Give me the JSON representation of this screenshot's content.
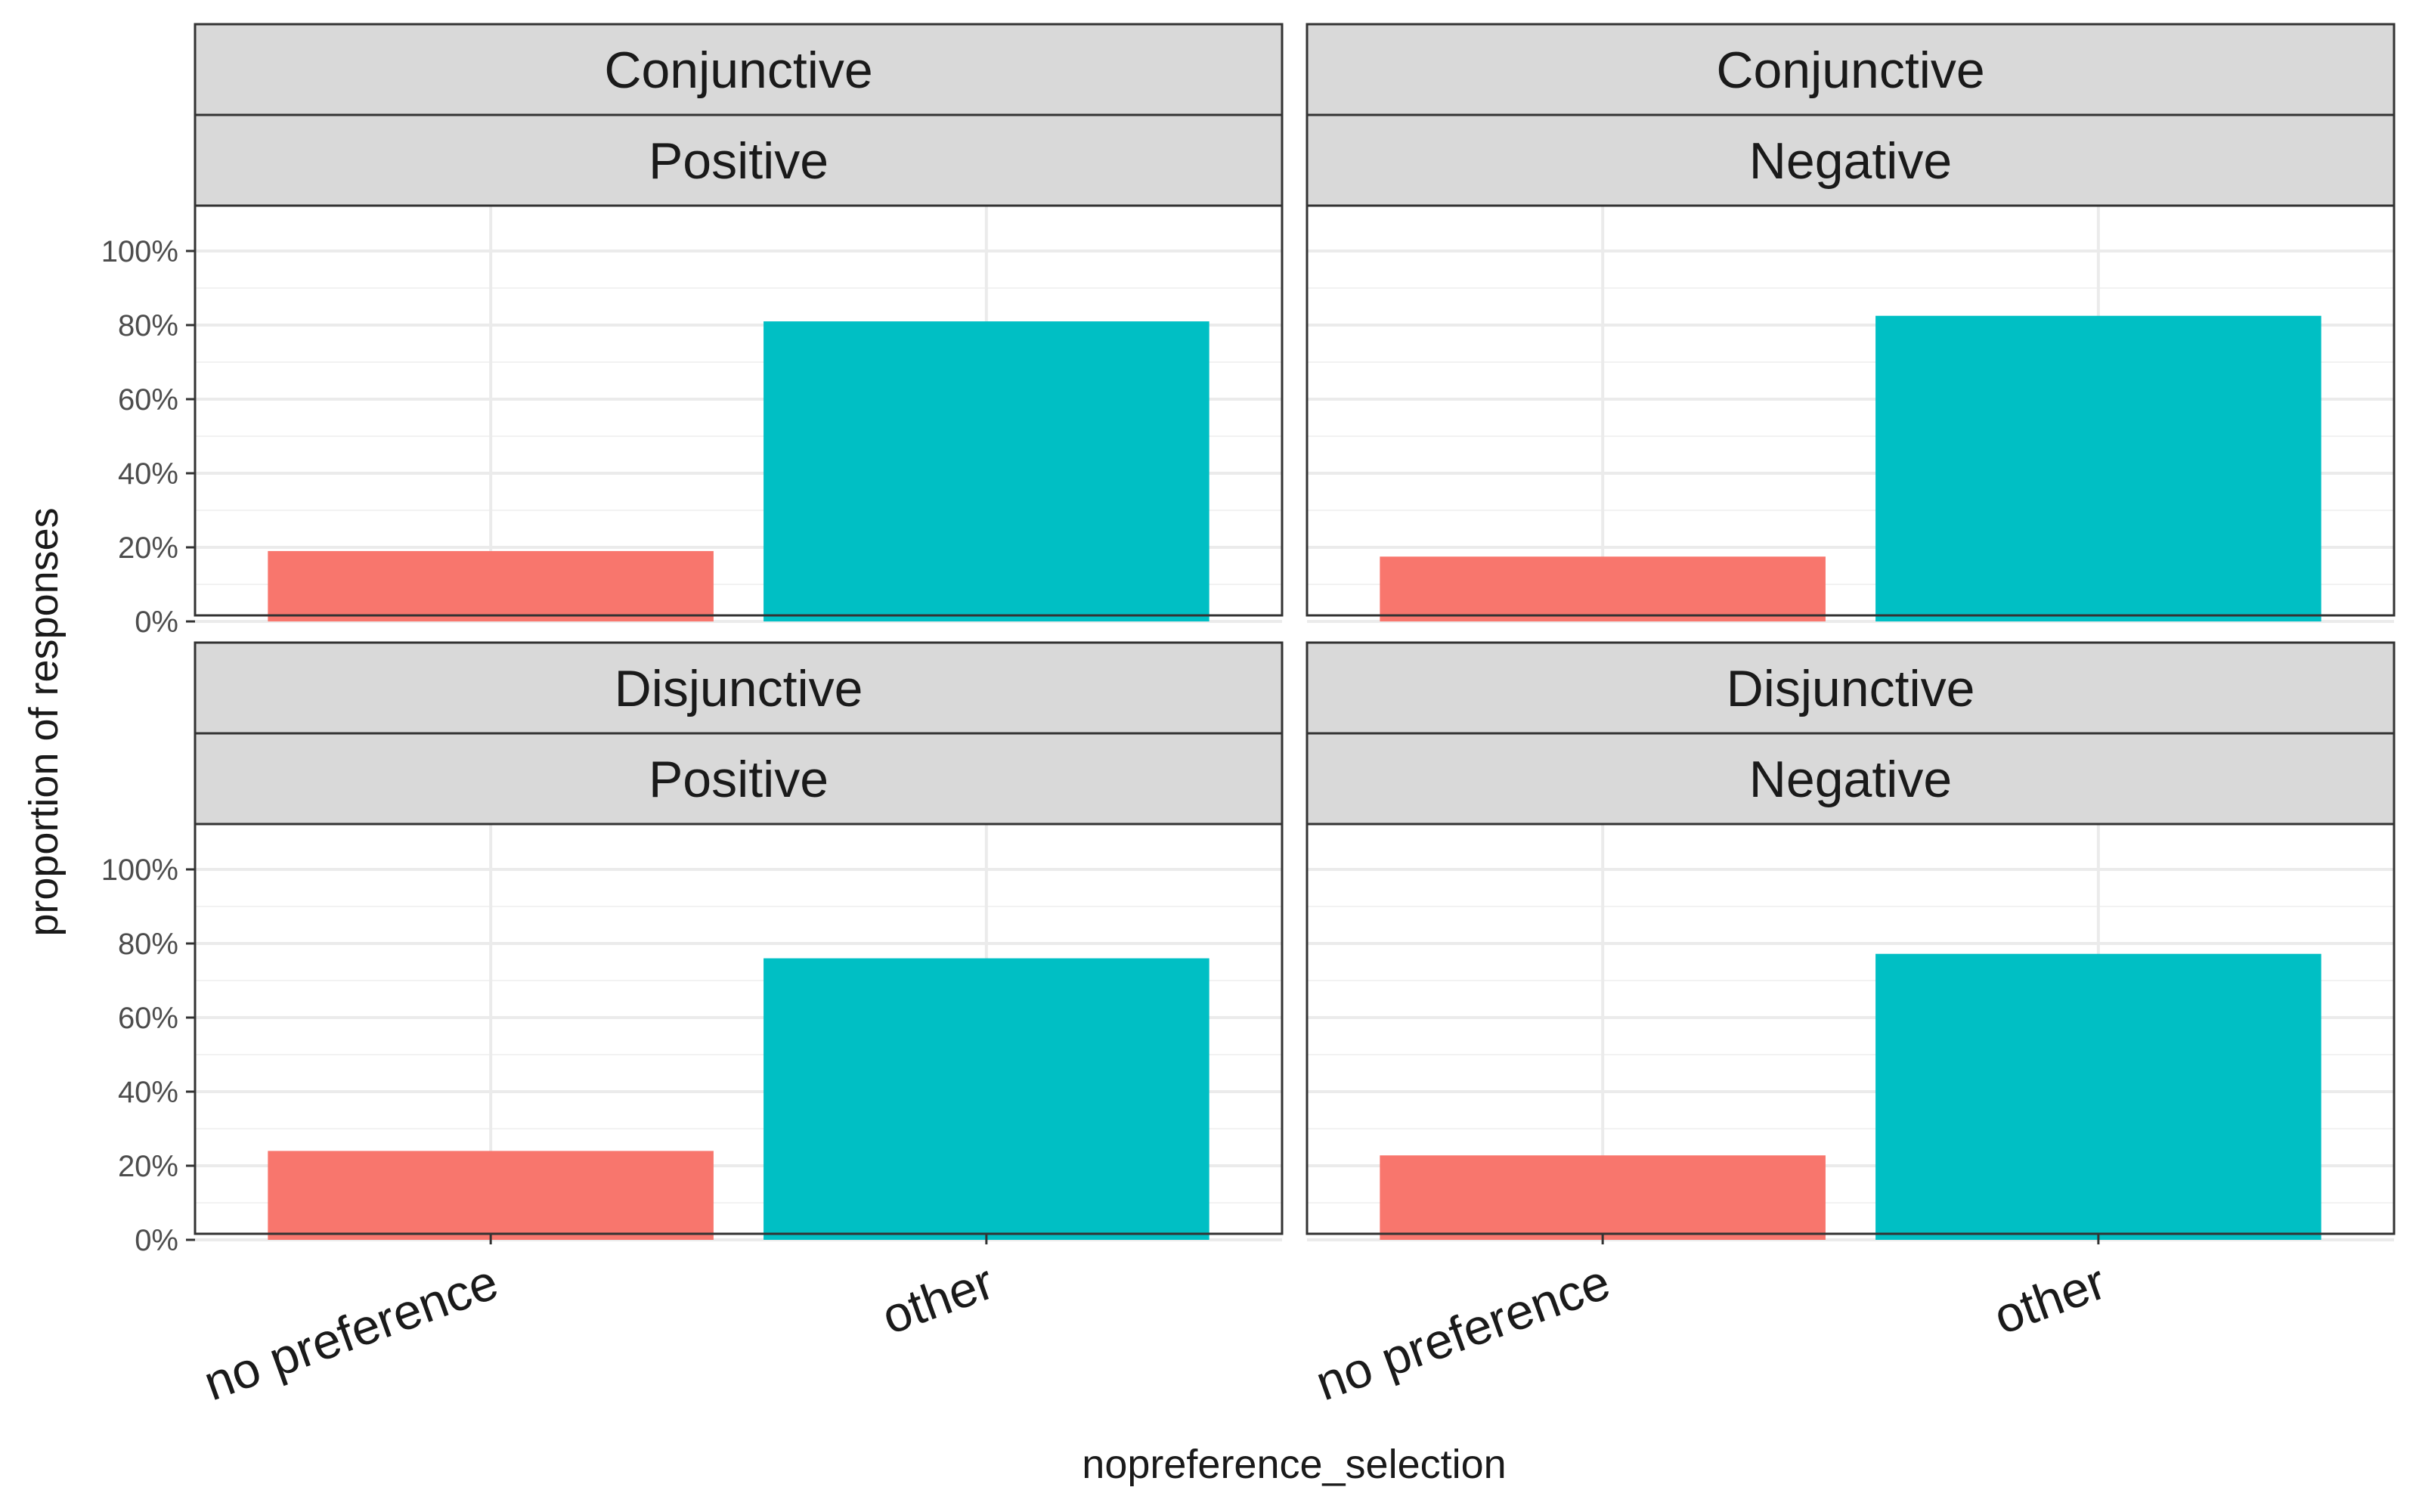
{
  "chart_data": {
    "type": "bar",
    "xlabel": "nopreference_selection",
    "ylabel": "proportion of responses",
    "categories": [
      "no preference",
      "other"
    ],
    "ylim": [
      0,
      1
    ],
    "yticks": [
      "0%",
      "20%",
      "40%",
      "60%",
      "80%",
      "100%"
    ],
    "grid": true,
    "legend": "none",
    "colors": {
      "no preference": "#F8766D",
      "other": "#00BFC4"
    },
    "panels": [
      {
        "strip_top": "Conjunctive",
        "strip_bottom": "Positive",
        "values": [
          0.19,
          0.81
        ]
      },
      {
        "strip_top": "Conjunctive",
        "strip_bottom": "Negative",
        "values": [
          0.175,
          0.825
        ]
      },
      {
        "strip_top": "Disjunctive",
        "strip_bottom": "Positive",
        "values": [
          0.24,
          0.76
        ]
      },
      {
        "strip_top": "Disjunctive",
        "strip_bottom": "Negative",
        "values": [
          0.228,
          0.772
        ]
      }
    ]
  }
}
